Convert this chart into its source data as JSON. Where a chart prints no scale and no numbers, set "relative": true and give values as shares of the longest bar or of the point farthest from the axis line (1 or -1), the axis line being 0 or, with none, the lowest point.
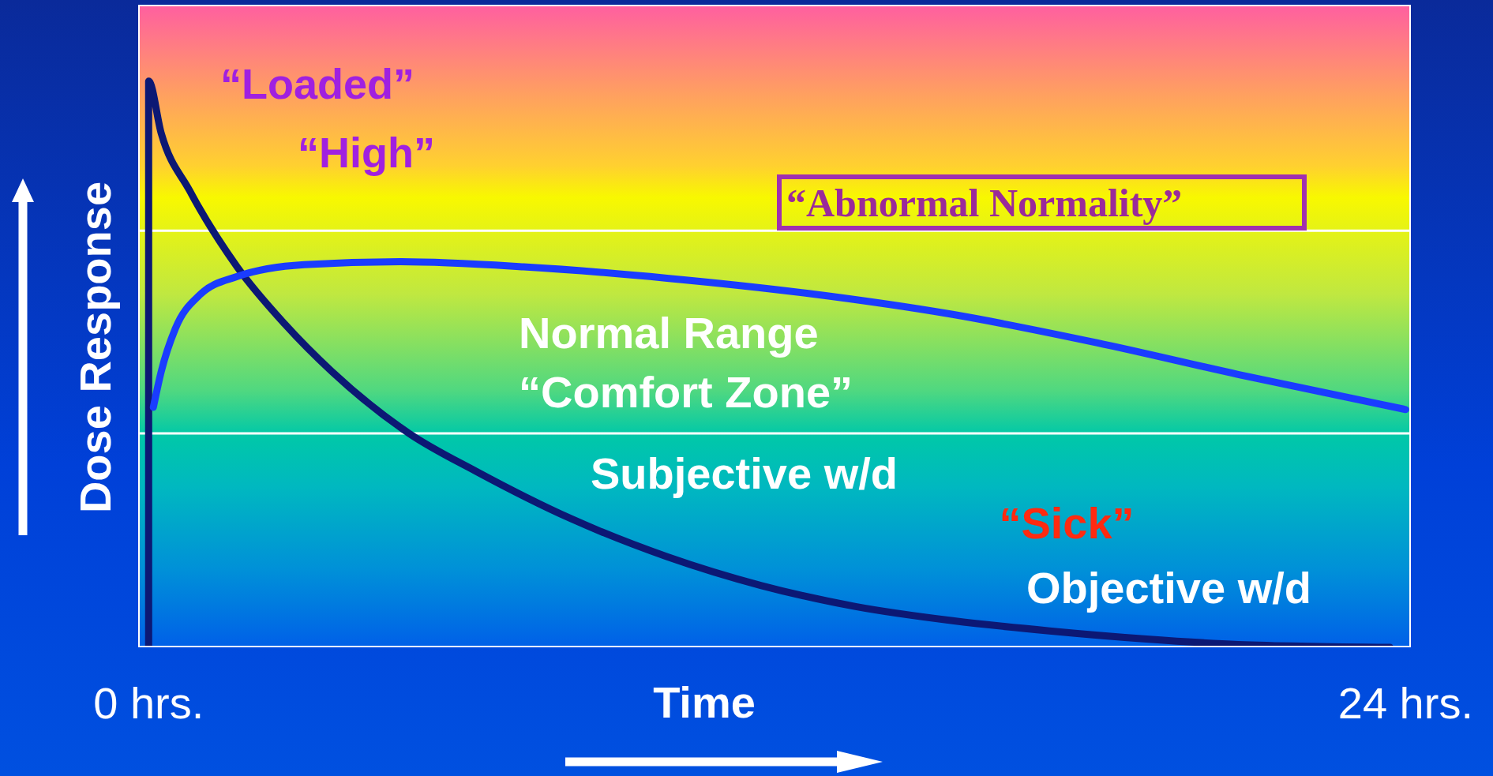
{
  "chart_data": {
    "type": "line",
    "relative": true,
    "xlabel": "Time",
    "ylabel": "Dose Response",
    "xlim": [
      -0.2,
      24.1
    ],
    "xticks": [
      {
        "value": 0,
        "label": "0 hrs."
      },
      {
        "value": 24,
        "label": "24 hrs."
      }
    ],
    "series": [
      {
        "color": "#0c1874",
        "x": [
          0,
          0,
          0.24,
          0.78,
          1.69,
          2.6,
          3.5,
          4.97,
          6.25,
          8.07,
          9.9,
          11.7,
          13.5,
          15.35,
          17.2,
          19,
          20.8,
          23.7
        ],
        "values": [
          0,
          1,
          0.908,
          0.807,
          0.672,
          0.571,
          0.487,
          0.378,
          0.311,
          0.227,
          0.16,
          0.109,
          0.072,
          0.047,
          0.029,
          0.015,
          0.005,
          0
        ]
      },
      {
        "color": "#1a3cff",
        "x": [
          0.09,
          0.24,
          0.51,
          0.97,
          1.69,
          2.97,
          4.79,
          7.16,
          9.9,
          12.6,
          15.35,
          18.1,
          20.8,
          24
        ],
        "values": [
          0.424,
          0.487,
          0.563,
          0.622,
          0.655,
          0.676,
          0.681,
          0.672,
          0.652,
          0.625,
          0.588,
          0.538,
          0.482,
          0.42
        ]
      }
    ],
    "ref_lines": [
      {
        "axis": "y",
        "value": 0.736,
        "color": "#ffffff"
      },
      {
        "axis": "y",
        "value": 0.378,
        "color": "#ffffff"
      }
    ],
    "annotations": [
      "“Loaded”",
      "“High”",
      "“Abnormal Normality”",
      "Normal Range",
      "“Comfort Zone”",
      "Subjective w/d",
      "“Sick”",
      "Objective w/d"
    ],
    "marker": "none",
    "line_style": "solid"
  }
}
